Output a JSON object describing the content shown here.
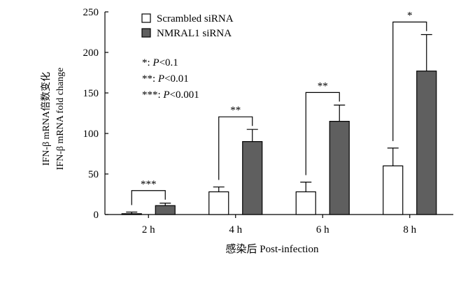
{
  "chart_data": {
    "type": "bar",
    "title": "",
    "xlabel": "感染后 Post-infection",
    "ylabel": [
      "IFN-β mRNA倍数变化",
      "IFN-β mRNA fold change"
    ],
    "ylim": [
      0,
      250
    ],
    "yticks": [
      0,
      50,
      100,
      150,
      200,
      250
    ],
    "categories": [
      "2 h",
      "4 h",
      "6 h",
      "8 h"
    ],
    "series": [
      {
        "name": "Scrambled siRNA",
        "color": "#ffffff",
        "values": [
          1,
          28,
          28,
          60
        ],
        "errors": [
          2,
          6,
          12,
          22
        ]
      },
      {
        "name": "NMRAL1 siRNA",
        "color": "#5f5f5f",
        "values": [
          11,
          90,
          115,
          177
        ],
        "errors": [
          3,
          15,
          20,
          45
        ]
      }
    ],
    "significance": [
      "***",
      "**",
      "**",
      "*"
    ],
    "significance_legend": [
      {
        "stars": "*",
        "label": "P",
        "threshold": "<0.1"
      },
      {
        "stars": "**",
        "label": "P",
        "threshold": "<0.01"
      },
      {
        "stars": "***",
        "label": "P",
        "threshold": "<0.001"
      }
    ],
    "legend_position": "top-left",
    "grid": false
  }
}
